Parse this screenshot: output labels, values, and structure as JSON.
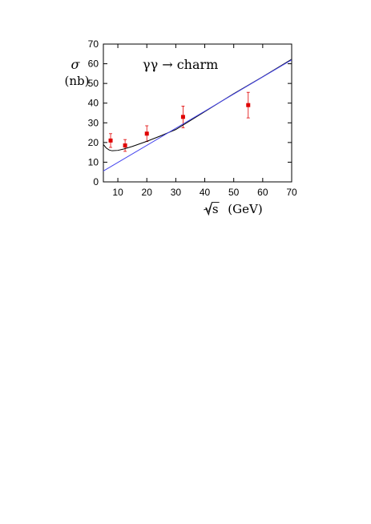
{
  "chart_data": {
    "type": "scatter",
    "annotation": "γγ → charm",
    "ylabel_symbol": "σ",
    "ylabel_unit": "(nb)",
    "xlabel_symbol": "√s",
    "xlabel_unit": "(GeV)",
    "xlim": [
      5,
      70
    ],
    "ylim": [
      0,
      70
    ],
    "xticks": [
      10,
      20,
      30,
      40,
      50,
      60,
      70
    ],
    "yticks": [
      0,
      10,
      20,
      30,
      40,
      50,
      60,
      70
    ],
    "grid": false,
    "legend": "none",
    "series": [
      {
        "kind": "points",
        "color": "#e00000",
        "points": [
          {
            "x": 7.5,
            "y": 21.0,
            "err": 3.5
          },
          {
            "x": 12.5,
            "y": 18.5,
            "err": 3.0
          },
          {
            "x": 20.0,
            "y": 24.5,
            "err": 4.0
          },
          {
            "x": 32.5,
            "y": 33.0,
            "err": 5.5
          },
          {
            "x": 55.0,
            "y": 39.0,
            "err": 6.5
          }
        ]
      },
      {
        "kind": "curve",
        "color": "#000000",
        "points": [
          {
            "x": 5,
            "y": 19.0
          },
          {
            "x": 6,
            "y": 17.2
          },
          {
            "x": 7,
            "y": 16.2
          },
          {
            "x": 8,
            "y": 15.8
          },
          {
            "x": 10,
            "y": 16.0
          },
          {
            "x": 12,
            "y": 16.7
          },
          {
            "x": 15,
            "y": 18.0
          },
          {
            "x": 20,
            "y": 20.6
          },
          {
            "x": 25,
            "y": 23.5
          },
          {
            "x": 30,
            "y": 26.6
          },
          {
            "x": 40,
            "y": 35.7
          },
          {
            "x": 50,
            "y": 44.8
          },
          {
            "x": 60,
            "y": 53.4
          },
          {
            "x": 70,
            "y": 62.3
          }
        ]
      },
      {
        "kind": "line",
        "color": "#4444ee",
        "points": [
          {
            "x": 5,
            "y": 5.5
          },
          {
            "x": 70,
            "y": 62.0
          }
        ]
      }
    ]
  }
}
